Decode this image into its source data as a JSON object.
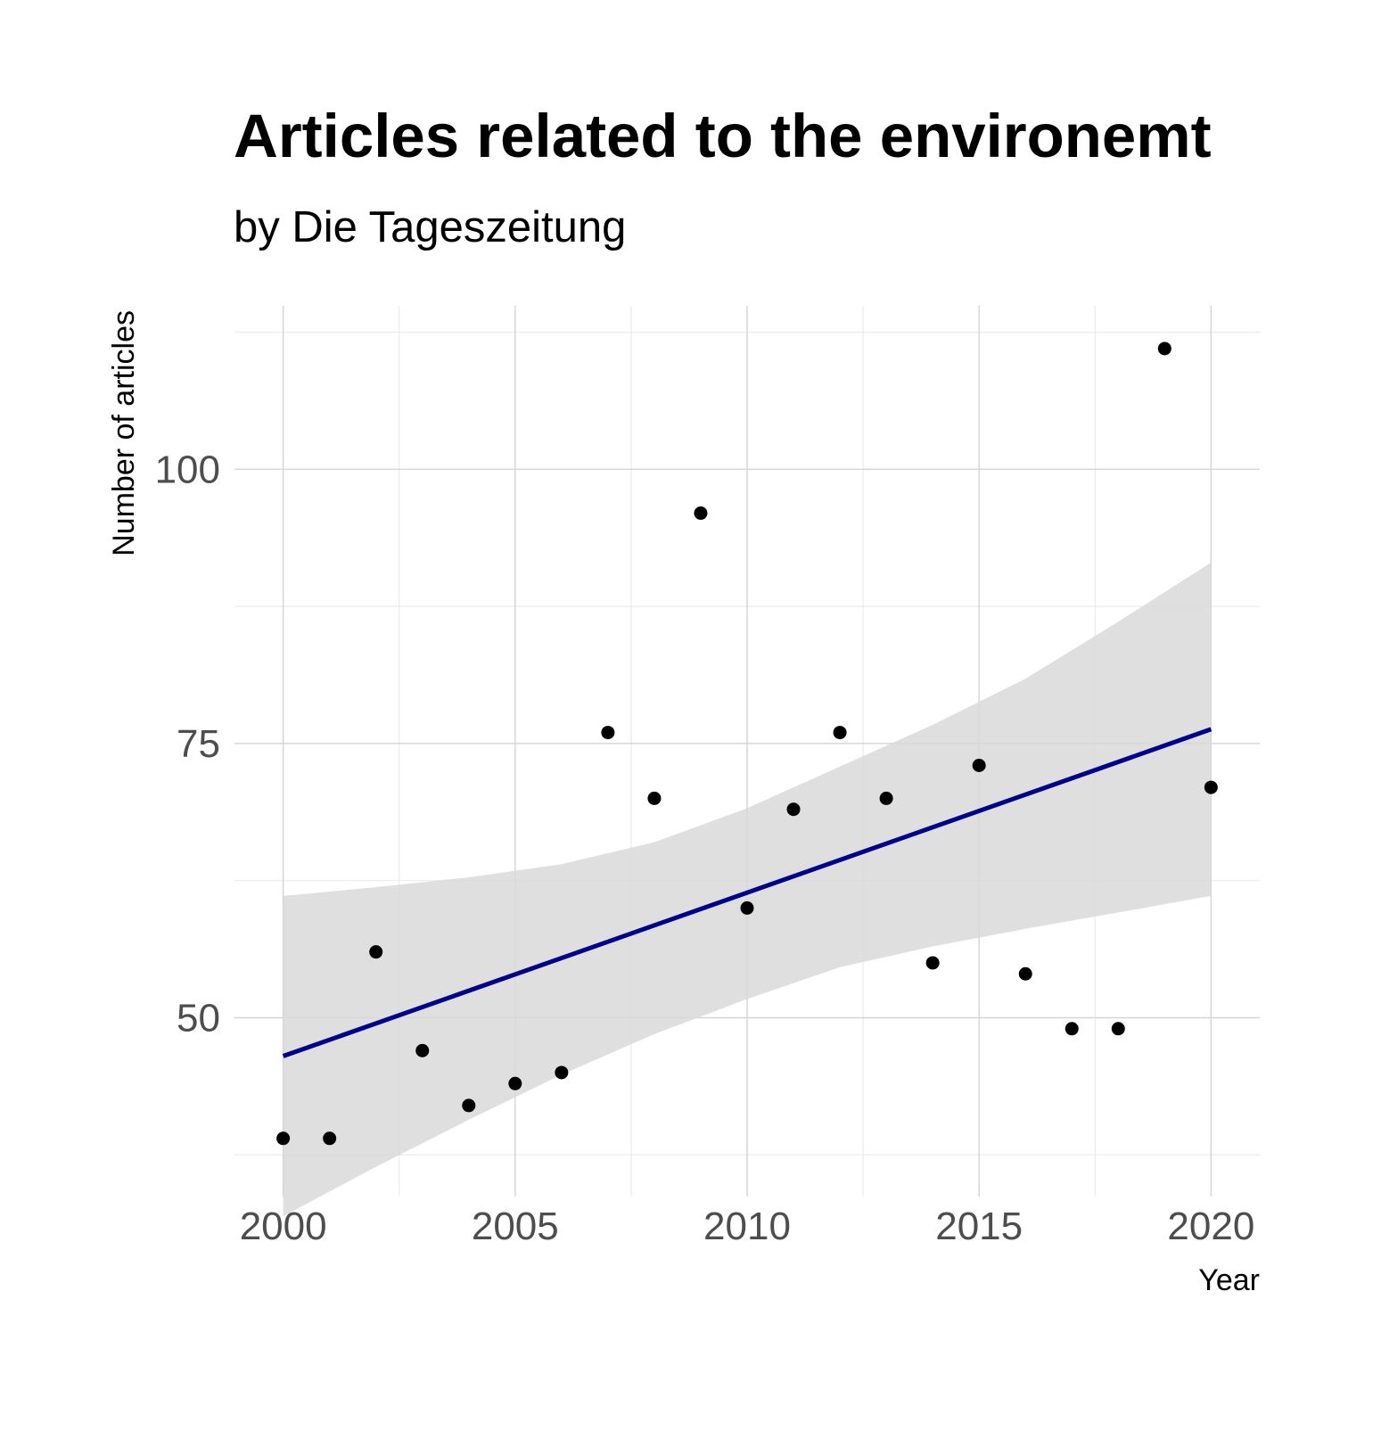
{
  "chart_data": {
    "type": "scatter",
    "title": "Articles related to the environemt",
    "subtitle": "by Die Tageszeitung",
    "xlabel": "Year",
    "ylabel": "Number of articles",
    "xlim": [
      1998.95,
      2021.05
    ],
    "ylim": [
      33.7,
      114.9
    ],
    "x_ticks": [
      2000,
      2005,
      2010,
      2015,
      2020
    ],
    "x_minor_ticks": [
      2002.5,
      2007.5,
      2012.5,
      2017.5
    ],
    "y_ticks": [
      50,
      75,
      100
    ],
    "y_minor_ticks": [
      37.5,
      62.5,
      87.5,
      112.5
    ],
    "grid": true,
    "legend": "none",
    "series": [
      {
        "type": "scatter",
        "x": [
          2000,
          2001,
          2002,
          2003,
          2004,
          2005,
          2006,
          2007,
          2008,
          2009,
          2010,
          2011,
          2012,
          2013,
          2014,
          2015,
          2016,
          2017,
          2018,
          2019,
          2020
        ],
        "y": [
          39,
          39,
          56,
          47,
          42,
          44,
          45,
          76,
          70,
          96,
          60,
          69,
          76,
          70,
          55,
          73,
          54,
          49,
          49,
          111,
          71
        ],
        "color": "#000000"
      },
      {
        "type": "line",
        "method": "lm",
        "x": [
          2000,
          2020
        ],
        "y": [
          46.5,
          76.3
        ],
        "color": "#00008b"
      },
      {
        "type": "confidence-band",
        "x": [
          2000,
          2002,
          2004,
          2006,
          2008,
          2010,
          2012,
          2014,
          2016,
          2018,
          2020
        ],
        "lower": [
          31.9,
          36.4,
          40.7,
          44.8,
          48.5,
          51.7,
          54.6,
          56.5,
          58.1,
          59.6,
          61.1
        ],
        "upper": [
          61.1,
          61.9,
          62.8,
          64.0,
          66.0,
          69.1,
          72.9,
          76.7,
          80.9,
          86.1,
          91.5
        ],
        "color": "#d9d9d9"
      }
    ],
    "colors": {
      "background": "#ffffff",
      "grid_major": "#d6d6d6",
      "grid_minor": "#ebebeb",
      "point": "#000000",
      "fit_line": "#00008b",
      "band": "#d9d9d9",
      "tick_label": "#4d4d4d",
      "title": "#000000"
    }
  }
}
